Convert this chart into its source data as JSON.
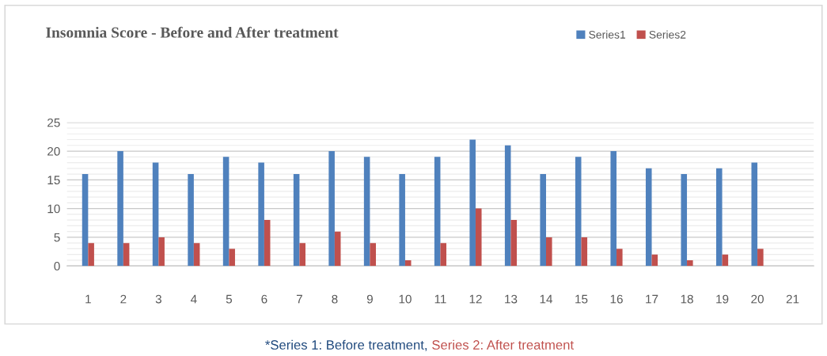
{
  "chart_data": {
    "type": "bar",
    "title": "Insomnia Score - Before and After treatment",
    "categories": [
      "1",
      "2",
      "3",
      "4",
      "5",
      "6",
      "7",
      "8",
      "9",
      "10",
      "11",
      "12",
      "13",
      "14",
      "15",
      "16",
      "17",
      "18",
      "19",
      "20",
      "21"
    ],
    "series": [
      {
        "name": "Series1",
        "color": "#4f81bd",
        "values": [
          16,
          20,
          18,
          16,
          19,
          18,
          16,
          20,
          19,
          16,
          19,
          22,
          21,
          16,
          19,
          20,
          17,
          16,
          17,
          18,
          null
        ]
      },
      {
        "name": "Series2",
        "color": "#c0504d",
        "values": [
          4,
          4,
          5,
          4,
          3,
          8,
          4,
          6,
          4,
          1,
          4,
          10,
          8,
          5,
          5,
          3,
          2,
          1,
          2,
          3,
          null
        ]
      }
    ],
    "ylim": [
      0,
      25
    ],
    "yticks": [
      0,
      5,
      10,
      15,
      20,
      25
    ],
    "grid": "y",
    "legend": "top right",
    "annotations": [
      "*Series 1: Before treatment,",
      "Series 2: After treatment"
    ]
  }
}
